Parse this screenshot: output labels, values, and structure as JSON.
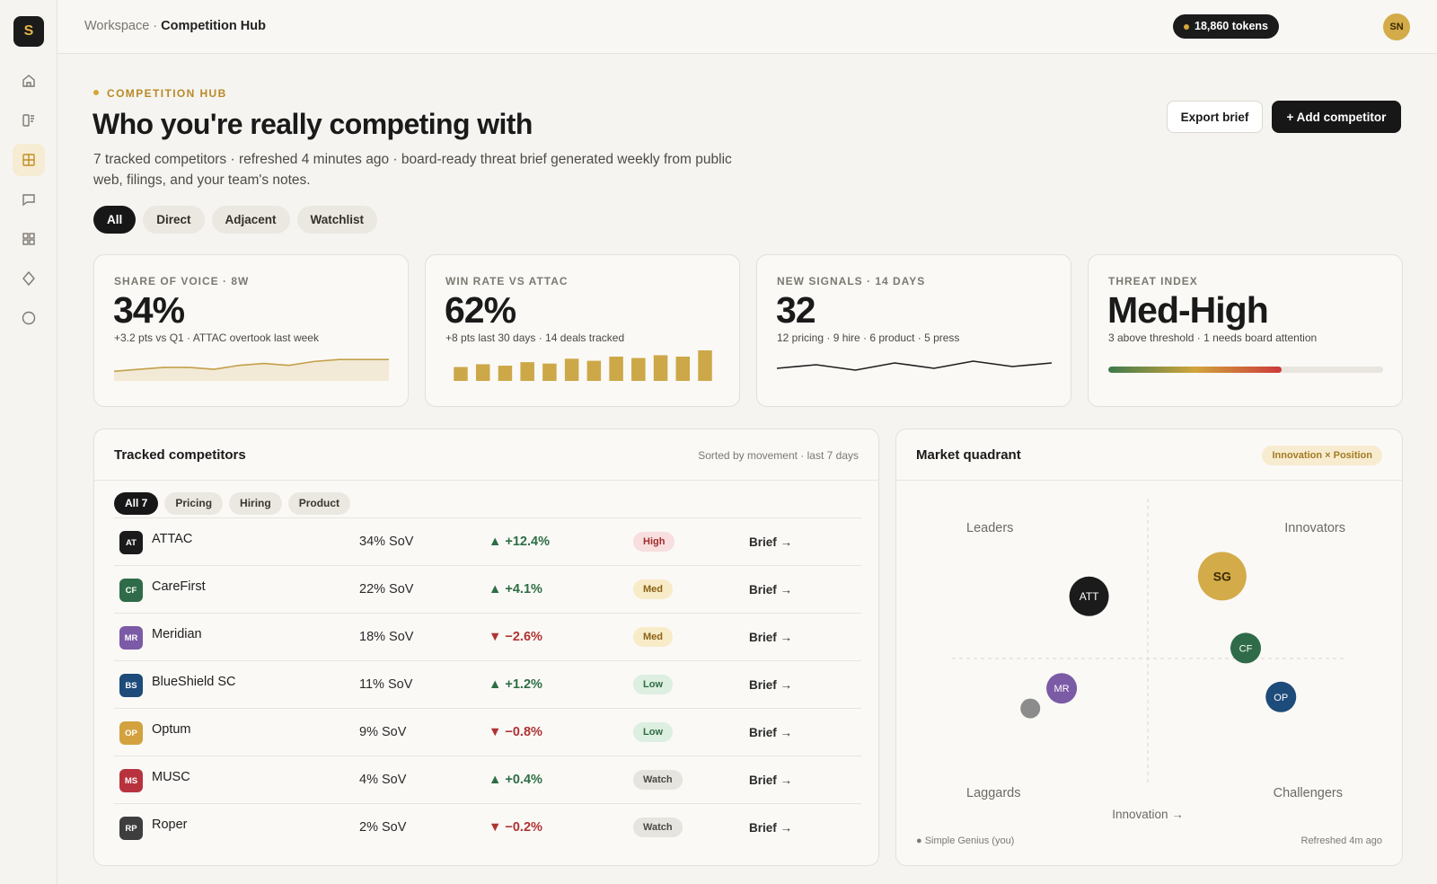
{
  "app": {
    "logo_letter": "S"
  },
  "breadcrumb": {
    "parent": "Workspace · ",
    "current": "Competition Hub"
  },
  "tokens": "18,860 tokens",
  "user_initials": "SN",
  "header": {
    "eyebrow": "COMPETITION HUB",
    "title": "Who you're really competing with",
    "subtitle": "7 tracked competitors · refreshed 4 minutes ago · board-ready threat brief generated weekly from public web, filings, and your team's notes.",
    "export_label": "Export brief",
    "add_label": "+ Add competitor"
  },
  "filters": [
    "All",
    "Direct",
    "Adjacent",
    "Watchlist"
  ],
  "kpis": [
    {
      "label": "SHARE OF VOICE · 8W",
      "value": "34%",
      "sub": "+3.2 pts vs Q1 · ATTAC overtook last week",
      "spark": [
        28,
        29,
        30,
        30,
        29,
        31,
        32,
        31,
        33,
        34,
        34,
        34
      ]
    },
    {
      "label": "WIN RATE VS ATTAC",
      "value": "62%",
      "sub": "+8 pts last 30 days · 14 deals tracked",
      "bars": [
        40,
        48,
        44,
        54,
        50,
        64,
        58,
        70,
        66,
        74,
        70,
        88
      ]
    },
    {
      "label": "NEW SIGNALS · 14 DAYS",
      "value": "32",
      "sub": "12 pricing · 9 hire · 6 product · 5 press",
      "line": [
        4,
        6,
        3,
        7,
        4,
        8,
        5,
        7
      ]
    },
    {
      "label": "THREAT INDEX",
      "value": "Med-High",
      "sub": "3 above threshold · 1 needs board attention",
      "level": 0.63
    }
  ],
  "competitors_card": {
    "title": "Tracked competitors",
    "meta": "Sorted by movement · last 7 days",
    "tabs": [
      "All 7",
      "Pricing",
      "Hiring",
      "Product"
    ],
    "rows": [
      {
        "abbr": "AT",
        "name": "ATTAC",
        "sov": "34% SoV",
        "delta": "▲ +12.4%",
        "dir": "up",
        "level": "High",
        "color": "#1b1b1b"
      },
      {
        "abbr": "CF",
        "name": "CareFirst",
        "sov": "22% SoV",
        "delta": "▲ +4.1%",
        "dir": "up",
        "level": "Med",
        "color": "#2f6b48"
      },
      {
        "abbr": "MR",
        "name": "Meridian",
        "sov": "18% SoV",
        "delta": "▼ −2.6%",
        "dir": "down",
        "level": "Med",
        "color": "#7b5aa6"
      },
      {
        "abbr": "BS",
        "name": "BlueShield SC",
        "sov": "11% SoV",
        "delta": "▲ +1.2%",
        "dir": "up",
        "level": "Low",
        "color": "#1d4b7a"
      },
      {
        "abbr": "OP",
        "name": "Optum",
        "sov": "9% SoV",
        "delta": "▼ −0.8%",
        "dir": "down",
        "level": "Low",
        "color": "#d3a23f"
      },
      {
        "abbr": "MS",
        "name": "MUSC",
        "sov": "4% SoV",
        "delta": "▲ +0.4%",
        "dir": "up",
        "level": "Watch",
        "color": "#b8323d"
      },
      {
        "abbr": "RP",
        "name": "Roper",
        "sov": "2% SoV",
        "delta": "▼ −0.2%",
        "dir": "down",
        "level": "Watch",
        "color": "#3e3e3e"
      }
    ],
    "brief_label": "Brief →"
  },
  "quadrant": {
    "title": "Market quadrant",
    "tag": "Innovation × Position",
    "labels": {
      "tl": "Leaders",
      "tr": "Innovators",
      "bl": "Laggards",
      "br": "Challengers",
      "x_axis": "Innovation →"
    },
    "points": [
      {
        "label": "SG",
        "x": 0.69,
        "y": 0.73,
        "color": "#d3ab48",
        "size": "lg"
      },
      {
        "label": "ATT",
        "x": 0.35,
        "y": 0.66,
        "color": "#1b1b1b",
        "size": "md"
      },
      {
        "label": "CF",
        "x": 0.75,
        "y": 0.48,
        "color": "#2f6b48",
        "size": "sm"
      },
      {
        "label": "MR",
        "x": 0.28,
        "y": 0.34,
        "color": "#7b5aa6",
        "size": "sm"
      },
      {
        "label": "OP",
        "x": 0.84,
        "y": 0.31,
        "color": "#1d4b7a",
        "size": "sm"
      },
      {
        "label": "",
        "x": 0.2,
        "y": 0.27,
        "color": "#8c8c8c",
        "size": "xs"
      }
    ],
    "footer_left": "● Simple Genius (you)",
    "footer_right": "Refreshed 4m ago"
  }
}
